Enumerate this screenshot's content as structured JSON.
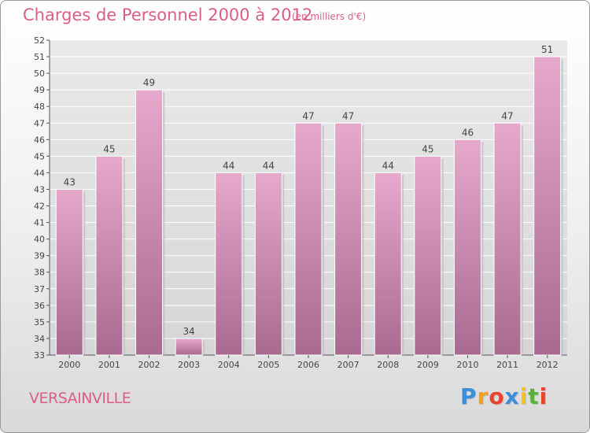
{
  "header": {
    "title": "Charges de Personnel 2000 à 2012",
    "subtitle": "(en milliers d'€)"
  },
  "footer": {
    "commune": "VERSAINVILLE",
    "logo_letters": [
      "P",
      "r",
      "o",
      "x",
      "i",
      "t",
      "i"
    ],
    "logo_colors": [
      "#3b8fd9",
      "#f2a21a",
      "#e8442e",
      "#3b8fd9",
      "#f2c41a",
      "#57b43a",
      "#e8442e"
    ]
  },
  "chart_data": {
    "type": "bar",
    "categories": [
      "2000",
      "2001",
      "2002",
      "2003",
      "2004",
      "2005",
      "2006",
      "2007",
      "2008",
      "2009",
      "2010",
      "2011",
      "2012"
    ],
    "values": [
      43,
      45,
      49,
      34,
      44,
      44,
      47,
      47,
      44,
      45,
      46,
      47,
      51
    ],
    "ylim": [
      33,
      52
    ],
    "yticks": [
      33,
      34,
      35,
      36,
      37,
      38,
      39,
      40,
      41,
      42,
      43,
      44,
      45,
      46,
      47,
      48,
      49,
      50,
      51,
      52
    ],
    "grid": true,
    "colors": {
      "bar_light": "#e6a9cc",
      "bar_dark": "#a86a90",
      "grid": "#ffffff",
      "plot_bg": "#dedede"
    }
  }
}
